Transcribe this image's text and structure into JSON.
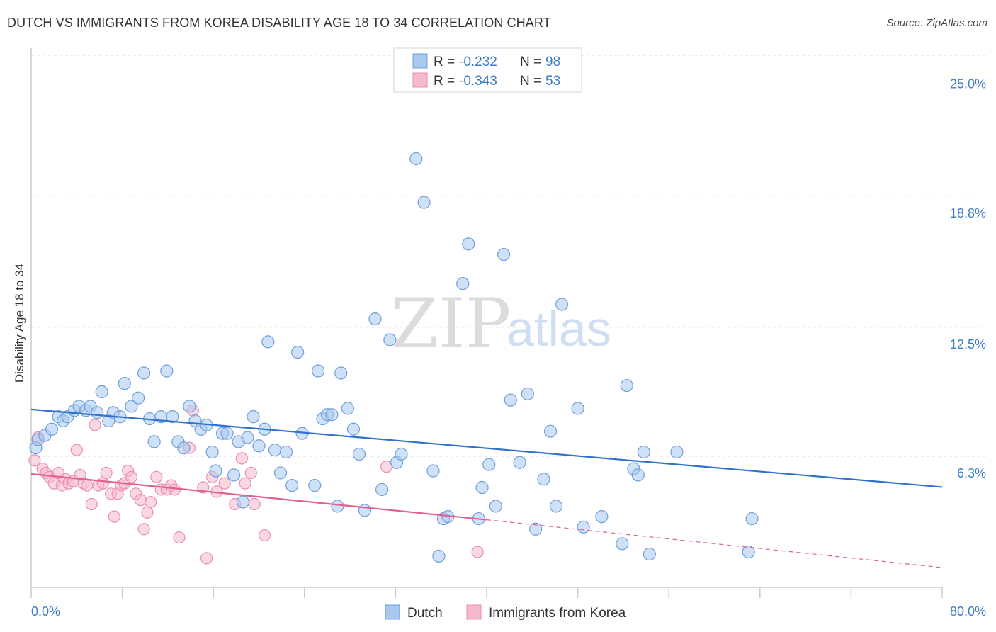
{
  "title": "DUTCH VS IMMIGRANTS FROM KOREA DISABILITY AGE 18 TO 34 CORRELATION CHART",
  "source": "Source: ZipAtlas.com",
  "watermark": {
    "zip": "ZIP",
    "atlas": "atlas"
  },
  "colors": {
    "dutch_fill": "#a8c8ee",
    "dutch_stroke": "#6f9fdc",
    "dutch_line": "#2f72cc",
    "korea_fill": "#f6b8cc",
    "korea_stroke": "#e98fae",
    "korea_line": "#e0608f",
    "grid": "#dddddd",
    "axis": "#cccccc",
    "tick_text": "#3d7cc9"
  },
  "legend": {
    "rows": [
      {
        "r_label": "R =",
        "r_value": "-0.232",
        "n_label": "N =",
        "n_value": "98"
      },
      {
        "r_label": "R =",
        "r_value": "-0.343",
        "n_label": "N =",
        "n_value": "53"
      }
    ]
  },
  "chart_data": {
    "type": "scatter",
    "title": "DUTCH VS IMMIGRANTS FROM KOREA DISABILITY AGE 18 TO 34 CORRELATION CHART",
    "xlabel": "",
    "ylabel": "Disability Age 18 to 34",
    "xlim": [
      0,
      80
    ],
    "ylim": [
      0,
      25.5
    ],
    "x_tick_labels": [
      "0.0%",
      "80.0%"
    ],
    "y_ticks": [
      6.3,
      12.5,
      18.8,
      25.0
    ],
    "y_tick_labels": [
      "6.3%",
      "12.5%",
      "18.8%",
      "25.0%"
    ],
    "grid": true,
    "series": [
      {
        "name": "Dutch",
        "R": -0.232,
        "N": 98,
        "trend": {
          "x0": 0,
          "y0": 8.55,
          "x1": 80,
          "y1": 4.82
        },
        "points": [
          [
            0.4,
            6.7
          ],
          [
            0.6,
            7.1
          ],
          [
            1.2,
            7.3
          ],
          [
            1.8,
            7.6
          ],
          [
            2.4,
            8.2
          ],
          [
            2.8,
            8.0
          ],
          [
            3.2,
            8.2
          ],
          [
            3.8,
            8.5
          ],
          [
            4.2,
            8.7
          ],
          [
            4.8,
            8.5
          ],
          [
            5.2,
            8.7
          ],
          [
            5.8,
            8.4
          ],
          [
            6.2,
            9.4
          ],
          [
            6.8,
            8.0
          ],
          [
            7.2,
            8.4
          ],
          [
            7.8,
            8.2
          ],
          [
            8.2,
            9.8
          ],
          [
            8.8,
            8.7
          ],
          [
            9.4,
            9.1
          ],
          [
            9.9,
            10.3
          ],
          [
            10.4,
            8.1
          ],
          [
            10.8,
            7.0
          ],
          [
            11.4,
            8.2
          ],
          [
            11.9,
            10.4
          ],
          [
            12.4,
            8.2
          ],
          [
            12.9,
            7.0
          ],
          [
            13.4,
            6.7
          ],
          [
            13.9,
            8.7
          ],
          [
            14.4,
            8.0
          ],
          [
            14.9,
            7.6
          ],
          [
            15.4,
            7.8
          ],
          [
            15.9,
            6.5
          ],
          [
            16.2,
            5.6
          ],
          [
            16.8,
            7.4
          ],
          [
            17.2,
            7.4
          ],
          [
            17.8,
            5.4
          ],
          [
            18.2,
            7.0
          ],
          [
            18.6,
            4.1
          ],
          [
            19.0,
            7.2
          ],
          [
            19.5,
            8.2
          ],
          [
            20.0,
            6.8
          ],
          [
            20.5,
            7.6
          ],
          [
            20.8,
            11.8
          ],
          [
            21.4,
            6.6
          ],
          [
            21.9,
            5.5
          ],
          [
            22.4,
            6.5
          ],
          [
            22.9,
            4.9
          ],
          [
            23.4,
            11.3
          ],
          [
            23.8,
            7.4
          ],
          [
            24.9,
            4.9
          ],
          [
            25.2,
            10.4
          ],
          [
            25.6,
            8.1
          ],
          [
            26.0,
            8.3
          ],
          [
            26.4,
            8.3
          ],
          [
            26.9,
            3.9
          ],
          [
            27.2,
            10.3
          ],
          [
            27.8,
            8.6
          ],
          [
            28.3,
            7.6
          ],
          [
            28.8,
            6.4
          ],
          [
            29.3,
            3.7
          ],
          [
            30.2,
            12.9
          ],
          [
            30.8,
            4.7
          ],
          [
            31.5,
            11.9
          ],
          [
            32.1,
            6.0
          ],
          [
            32.5,
            6.4
          ],
          [
            33.8,
            20.6
          ],
          [
            34.5,
            18.5
          ],
          [
            35.3,
            5.6
          ],
          [
            35.8,
            1.5
          ],
          [
            36.2,
            3.3
          ],
          [
            36.6,
            3.4
          ],
          [
            37.9,
            14.6
          ],
          [
            38.4,
            16.5
          ],
          [
            39.3,
            3.3
          ],
          [
            39.6,
            4.8
          ],
          [
            40.2,
            5.9
          ],
          [
            40.8,
            3.9
          ],
          [
            41.5,
            16.0
          ],
          [
            42.1,
            9.0
          ],
          [
            42.9,
            6.0
          ],
          [
            43.6,
            9.3
          ],
          [
            44.3,
            2.8
          ],
          [
            45.0,
            5.2
          ],
          [
            45.6,
            7.5
          ],
          [
            46.1,
            3.9
          ],
          [
            46.6,
            13.6
          ],
          [
            48.0,
            8.6
          ],
          [
            48.5,
            2.9
          ],
          [
            50.1,
            3.4
          ],
          [
            51.9,
            2.1
          ],
          [
            52.3,
            9.7
          ],
          [
            52.9,
            5.7
          ],
          [
            53.3,
            5.4
          ],
          [
            53.8,
            6.5
          ],
          [
            54.3,
            1.6
          ],
          [
            56.7,
            6.5
          ],
          [
            63.0,
            1.7
          ],
          [
            63.3,
            3.3
          ]
        ]
      },
      {
        "name": "Immigrants from Korea",
        "R": -0.343,
        "N": 53,
        "trend": {
          "x0": 0,
          "y0": 5.45,
          "x1": 40,
          "y1": 3.25
        },
        "trend_dashed": {
          "x0": 40,
          "y0": 3.25,
          "x1": 80,
          "y1": 0.95
        },
        "points": [
          [
            0.3,
            6.1
          ],
          [
            0.6,
            7.2
          ],
          [
            1.0,
            5.7
          ],
          [
            1.3,
            5.5
          ],
          [
            1.6,
            5.3
          ],
          [
            2.0,
            5.0
          ],
          [
            2.4,
            5.5
          ],
          [
            2.7,
            4.9
          ],
          [
            3.0,
            5.2
          ],
          [
            3.3,
            5.0
          ],
          [
            3.7,
            5.1
          ],
          [
            4.0,
            6.6
          ],
          [
            4.3,
            5.4
          ],
          [
            4.6,
            5.0
          ],
          [
            4.9,
            4.9
          ],
          [
            5.3,
            4.0
          ],
          [
            5.6,
            7.8
          ],
          [
            5.9,
            4.9
          ],
          [
            6.3,
            5.0
          ],
          [
            6.6,
            5.5
          ],
          [
            7.0,
            4.5
          ],
          [
            7.3,
            3.4
          ],
          [
            7.6,
            4.5
          ],
          [
            7.9,
            4.9
          ],
          [
            8.2,
            5.0
          ],
          [
            8.5,
            5.6
          ],
          [
            8.8,
            5.3
          ],
          [
            9.2,
            4.5
          ],
          [
            9.6,
            4.2
          ],
          [
            9.9,
            2.8
          ],
          [
            10.2,
            3.6
          ],
          [
            10.5,
            4.1
          ],
          [
            11.0,
            5.3
          ],
          [
            11.4,
            4.7
          ],
          [
            11.9,
            4.7
          ],
          [
            12.3,
            4.9
          ],
          [
            12.6,
            4.7
          ],
          [
            13.0,
            2.4
          ],
          [
            13.9,
            6.7
          ],
          [
            14.2,
            8.5
          ],
          [
            15.1,
            4.8
          ],
          [
            15.4,
            1.4
          ],
          [
            15.9,
            5.3
          ],
          [
            16.3,
            4.6
          ],
          [
            17.0,
            5.0
          ],
          [
            17.9,
            4.0
          ],
          [
            18.5,
            6.2
          ],
          [
            18.8,
            5.0
          ],
          [
            19.3,
            5.5
          ],
          [
            19.6,
            4.0
          ],
          [
            20.5,
            2.5
          ],
          [
            31.2,
            5.8
          ],
          [
            39.2,
            1.7
          ]
        ]
      }
    ]
  },
  "bottom_legend": [
    {
      "label": "Dutch"
    },
    {
      "label": "Immigrants from Korea"
    }
  ]
}
